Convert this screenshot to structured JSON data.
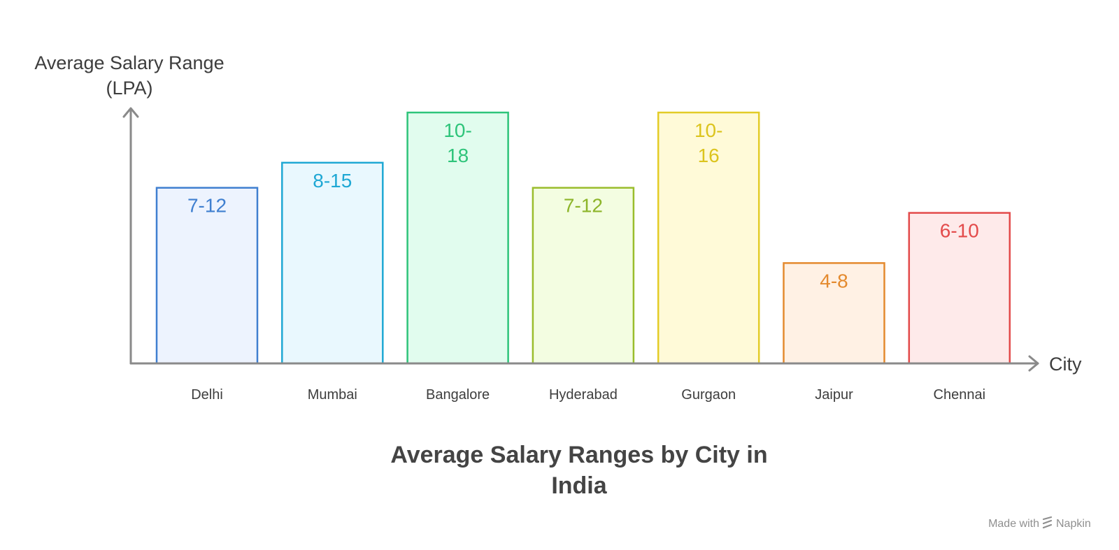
{
  "chart_data": {
    "type": "bar",
    "title_lines": [
      "Average Salary Ranges by City in",
      "India"
    ],
    "xlabel": "City",
    "ylabel_lines": [
      "Average Salary Range",
      "(LPA)"
    ],
    "ylim": [
      0,
      20
    ],
    "categories": [
      "Delhi",
      "Mumbai",
      "Bangalore",
      "Hyderabad",
      "Gurgaon",
      "Jaipur",
      "Chennai"
    ],
    "values": [
      14,
      16,
      20,
      14,
      20,
      8,
      12
    ],
    "value_labels": [
      [
        "7-12"
      ],
      [
        "8-15"
      ],
      [
        "10-",
        "18"
      ],
      [
        "7-12"
      ],
      [
        "10-",
        "16"
      ],
      [
        "4-8"
      ],
      [
        "6-10"
      ]
    ],
    "colors": [
      {
        "stroke": "#3f7fd0",
        "fill": "#edf3fe",
        "text": "#3f7fd0"
      },
      {
        "stroke": "#1fa8d4",
        "fill": "#e9f8fe",
        "text": "#1fa8d4"
      },
      {
        "stroke": "#2ec47a",
        "fill": "#e1fcee",
        "text": "#2ec47a"
      },
      {
        "stroke": "#9abd2c",
        "fill": "#f3fde1",
        "text": "#8db52a"
      },
      {
        "stroke": "#e3cc27",
        "fill": "#fffad8",
        "text": "#dcc41e"
      },
      {
        "stroke": "#e48a2e",
        "fill": "#fff1e4",
        "text": "#e48a2e"
      },
      {
        "stroke": "#e34a4a",
        "fill": "#feeaea",
        "text": "#e34a4a"
      }
    ],
    "grid": false,
    "legend": "none"
  },
  "footer": {
    "made_with": "Made with",
    "brand": "Napkin",
    "icon": "napkin-logo-icon"
  }
}
